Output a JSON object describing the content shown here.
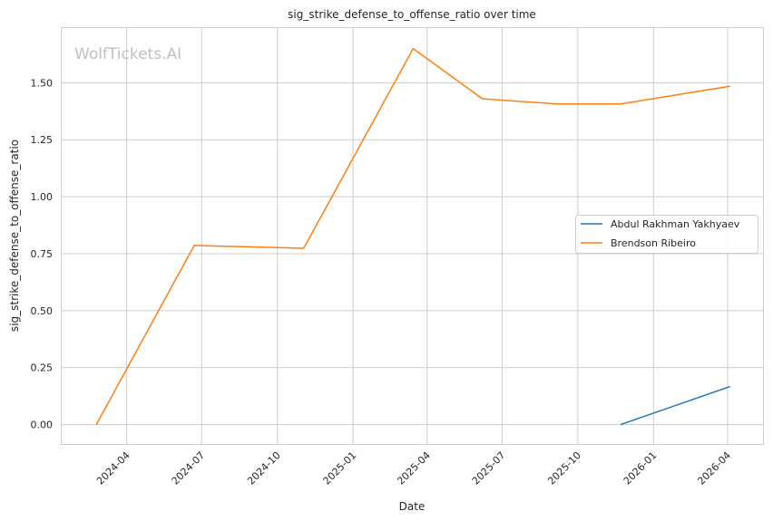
{
  "chart_data": {
    "type": "line",
    "title": "sig_strike_defense_to_offense_ratio over time",
    "xlabel": "Date",
    "ylabel": "sig_strike_defense_to_offense_ratio",
    "watermark": "WolfTickets.AI",
    "x_ticks": [
      "2024-04",
      "2024-07",
      "2024-10",
      "2025-01",
      "2025-04",
      "2025-07",
      "2025-10",
      "2026-01",
      "2026-04"
    ],
    "y_ticks": [
      "0.00",
      "0.25",
      "0.50",
      "0.75",
      "1.00",
      "1.25",
      "1.50"
    ],
    "xlim": [
      "2024-01-13",
      "2026-05-14"
    ],
    "ylim": [
      -0.085,
      1.74
    ],
    "grid": true,
    "legend_position": "center-right",
    "series": [
      {
        "name": "Abdul Rakhman Yakhyaev",
        "color": "#1f77b4",
        "points": [
          [
            "2025-11-22",
            0.0
          ],
          [
            "2026-04-04",
            0.167
          ]
        ]
      },
      {
        "name": "Brendson Ribeiro",
        "color": "#ff7f0e",
        "points": [
          [
            "2024-02-24",
            0.0
          ],
          [
            "2024-06-22",
            0.786
          ],
          [
            "2024-11-02",
            0.774
          ],
          [
            "2025-03-15",
            1.65
          ],
          [
            "2025-06-07",
            1.43
          ],
          [
            "2025-09-06",
            1.407
          ],
          [
            "2025-11-22",
            1.407
          ],
          [
            "2026-04-04",
            1.485
          ]
        ]
      }
    ]
  }
}
